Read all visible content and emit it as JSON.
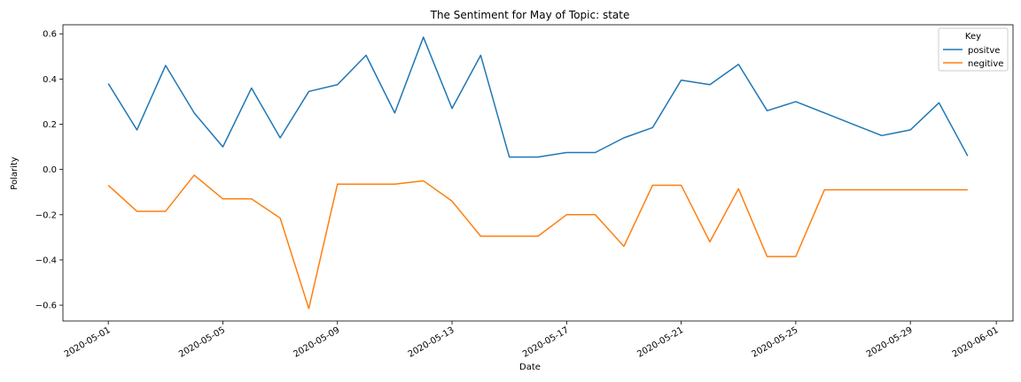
{
  "chart_data": {
    "type": "line",
    "title": "The Sentiment for May of Topic: state",
    "xlabel": "Date",
    "ylabel": "Polarity",
    "x": [
      "2020-05-01",
      "2020-05-02",
      "2020-05-03",
      "2020-05-04",
      "2020-05-05",
      "2020-05-06",
      "2020-05-07",
      "2020-05-08",
      "2020-05-09",
      "2020-05-10",
      "2020-05-11",
      "2020-05-12",
      "2020-05-13",
      "2020-05-14",
      "2020-05-15",
      "2020-05-16",
      "2020-05-17",
      "2020-05-18",
      "2020-05-19",
      "2020-05-20",
      "2020-05-21",
      "2020-05-22",
      "2020-05-23",
      "2020-05-24",
      "2020-05-25",
      "2020-05-26",
      "2020-05-27",
      "2020-05-28",
      "2020-05-29",
      "2020-05-30",
      "2020-05-31"
    ],
    "series": [
      {
        "name": "positve",
        "color": "#1f77b4",
        "values": [
          0.38,
          0.175,
          0.46,
          0.25,
          0.1,
          0.36,
          0.14,
          0.345,
          0.375,
          0.505,
          0.25,
          0.585,
          0.27,
          0.505,
          0.055,
          0.055,
          0.075,
          0.075,
          0.14,
          0.185,
          0.395,
          0.375,
          0.465,
          0.26,
          0.3,
          0.25,
          0.2,
          0.15,
          0.175,
          0.295,
          0.06
        ]
      },
      {
        "name": "negitive",
        "color": "#ff7f0e",
        "values": [
          -0.07,
          -0.185,
          -0.185,
          -0.025,
          -0.13,
          -0.13,
          -0.215,
          -0.615,
          -0.065,
          -0.065,
          -0.065,
          -0.05,
          -0.14,
          -0.295,
          -0.295,
          -0.295,
          -0.2,
          -0.2,
          -0.34,
          -0.07,
          -0.07,
          -0.32,
          -0.085,
          -0.385,
          -0.385,
          -0.09,
          -0.09,
          -0.09,
          -0.09,
          -0.09,
          -0.09
        ]
      }
    ],
    "xticks": [
      "2020-05-01",
      "2020-05-05",
      "2020-05-09",
      "2020-05-13",
      "2020-05-17",
      "2020-05-21",
      "2020-05-25",
      "2020-05-29",
      "2020-06-01"
    ],
    "yticks": [
      -0.6,
      -0.4,
      -0.2,
      0.0,
      0.2,
      0.4,
      0.6
    ],
    "ytick_labels": [
      "−0.6",
      "−0.4",
      "−0.2",
      "0.0",
      "0.2",
      "0.4",
      "0.6"
    ],
    "xlim": [
      "2020-04-29T10:00",
      "2020-06-01T14:00"
    ],
    "ylim": [
      -0.67,
      0.64
    ],
    "legend": {
      "title": "Key",
      "position": "top-right"
    },
    "grid": false
  }
}
